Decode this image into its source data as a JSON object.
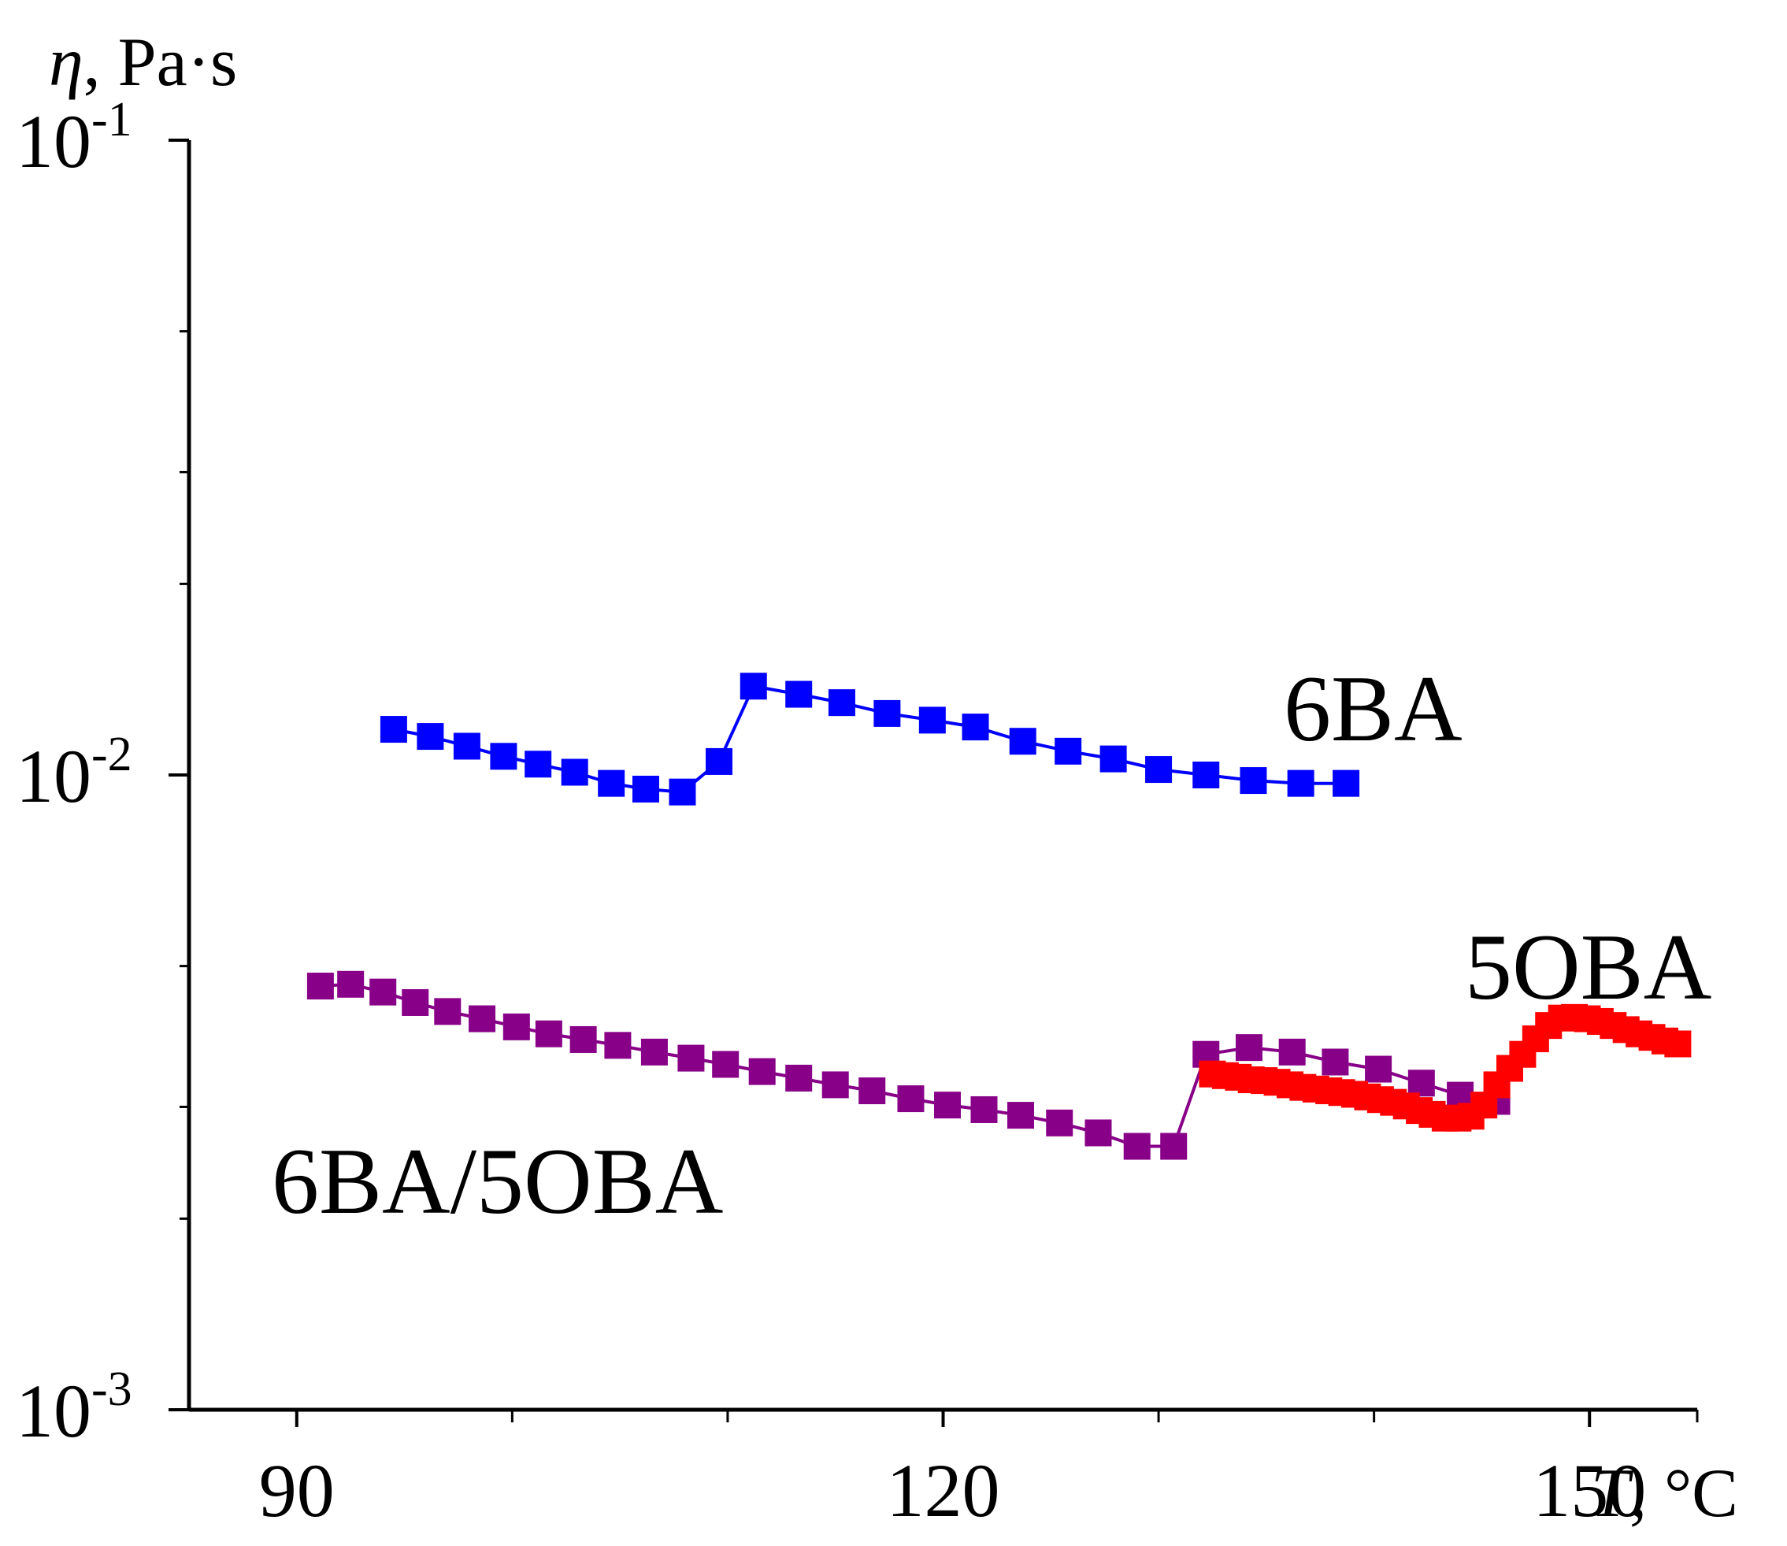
{
  "chart_data": {
    "type": "line",
    "title": "",
    "xlabel": "T, °C",
    "ylabel": "η, Pa·s",
    "xlabel_parts": {
      "symbol": "T",
      "unit": ", °C"
    },
    "ylabel_parts": {
      "symbol": "η",
      "unit": ", Pa·s"
    },
    "yscale": "log",
    "xlim": [
      85,
      155
    ],
    "ylim": [
      0.001,
      0.1
    ],
    "x_ticks": [
      {
        "value": 90,
        "label": "90"
      },
      {
        "value": 120,
        "label": "120"
      },
      {
        "value": 150,
        "label": "150"
      }
    ],
    "x_minor_ticks": [
      100,
      110,
      130,
      140
    ],
    "y_ticks": [
      {
        "value": 0.001,
        "base": "10",
        "exp": "-3"
      },
      {
        "value": 0.01,
        "base": "10",
        "exp": "-2"
      },
      {
        "value": 0.1,
        "base": "10",
        "exp": "-1"
      }
    ],
    "y_minor_ticks": [
      0.002,
      0.003,
      0.005,
      0.02,
      0.03,
      0.05
    ],
    "grid": false,
    "legend": "none (inline series labels)",
    "series": [
      {
        "name": "6BA",
        "color": "#0000ff",
        "marker": "square",
        "x": [
          94.5,
          96.2,
          97.9,
          99.6,
          101.2,
          102.9,
          104.6,
          106.2,
          107.9,
          109.6,
          111.2,
          113.3,
          115.3,
          117.4,
          119.5,
          121.5,
          123.7,
          125.8,
          127.9,
          130.0,
          132.2,
          134.4,
          136.6,
          138.7
        ],
        "y": [
          0.0118,
          0.0115,
          0.0111,
          0.0107,
          0.0104,
          0.0101,
          0.0097,
          0.0095,
          0.0094,
          0.0105,
          0.0138,
          0.0134,
          0.013,
          0.0125,
          0.0122,
          0.0119,
          0.0113,
          0.0109,
          0.0106,
          0.0102,
          0.01,
          0.0098,
          0.0097,
          0.0097
        ]
      },
      {
        "name": "6BA/5OBA",
        "color": "#880088",
        "marker": "square",
        "x": [
          91.1,
          92.5,
          94.0,
          95.5,
          97.0,
          98.6,
          100.2,
          101.7,
          103.3,
          104.9,
          106.6,
          108.3,
          109.9,
          111.6,
          113.3,
          115.0,
          116.7,
          118.5,
          120.2,
          121.9,
          123.6,
          125.4,
          127.2,
          129.0,
          130.7,
          132.2,
          134.2,
          136.2,
          138.2,
          140.2,
          142.2,
          144.0,
          145.7
        ],
        "y": [
          0.00465,
          0.00468,
          0.00455,
          0.00438,
          0.00424,
          0.00413,
          0.00401,
          0.00391,
          0.00383,
          0.00375,
          0.00366,
          0.00358,
          0.0035,
          0.00341,
          0.00333,
          0.00325,
          0.00318,
          0.00309,
          0.00302,
          0.00297,
          0.00291,
          0.00283,
          0.00273,
          0.0026,
          0.0026,
          0.00363,
          0.00372,
          0.00366,
          0.00353,
          0.00344,
          0.00327,
          0.00313,
          0.00306
        ]
      },
      {
        "name": "5OBA",
        "color": "#ff0000",
        "marker": "square",
        "x": [
          132.5,
          133.1,
          133.7,
          134.3,
          134.9,
          135.5,
          136.1,
          136.7,
          137.3,
          137.9,
          138.5,
          139.1,
          139.7,
          140.3,
          140.9,
          141.5,
          142.1,
          142.7,
          143.3,
          143.9,
          144.5,
          145.1,
          145.7,
          146.3,
          146.9,
          147.5,
          148.1,
          148.7,
          149.3,
          149.9,
          150.5,
          151.1,
          151.7,
          152.3,
          152.9,
          153.5,
          154.1
        ],
        "y": [
          0.00338,
          0.00336,
          0.00334,
          0.00331,
          0.0033,
          0.00328,
          0.00325,
          0.00322,
          0.0032,
          0.00318,
          0.00316,
          0.00314,
          0.00311,
          0.00308,
          0.00305,
          0.00301,
          0.00296,
          0.00292,
          0.00288,
          0.00288,
          0.0029,
          0.00302,
          0.00325,
          0.00345,
          0.00363,
          0.00384,
          0.00403,
          0.00414,
          0.00415,
          0.00413,
          0.00409,
          0.00403,
          0.00397,
          0.00391,
          0.00386,
          0.00381,
          0.00377
        ]
      }
    ]
  }
}
